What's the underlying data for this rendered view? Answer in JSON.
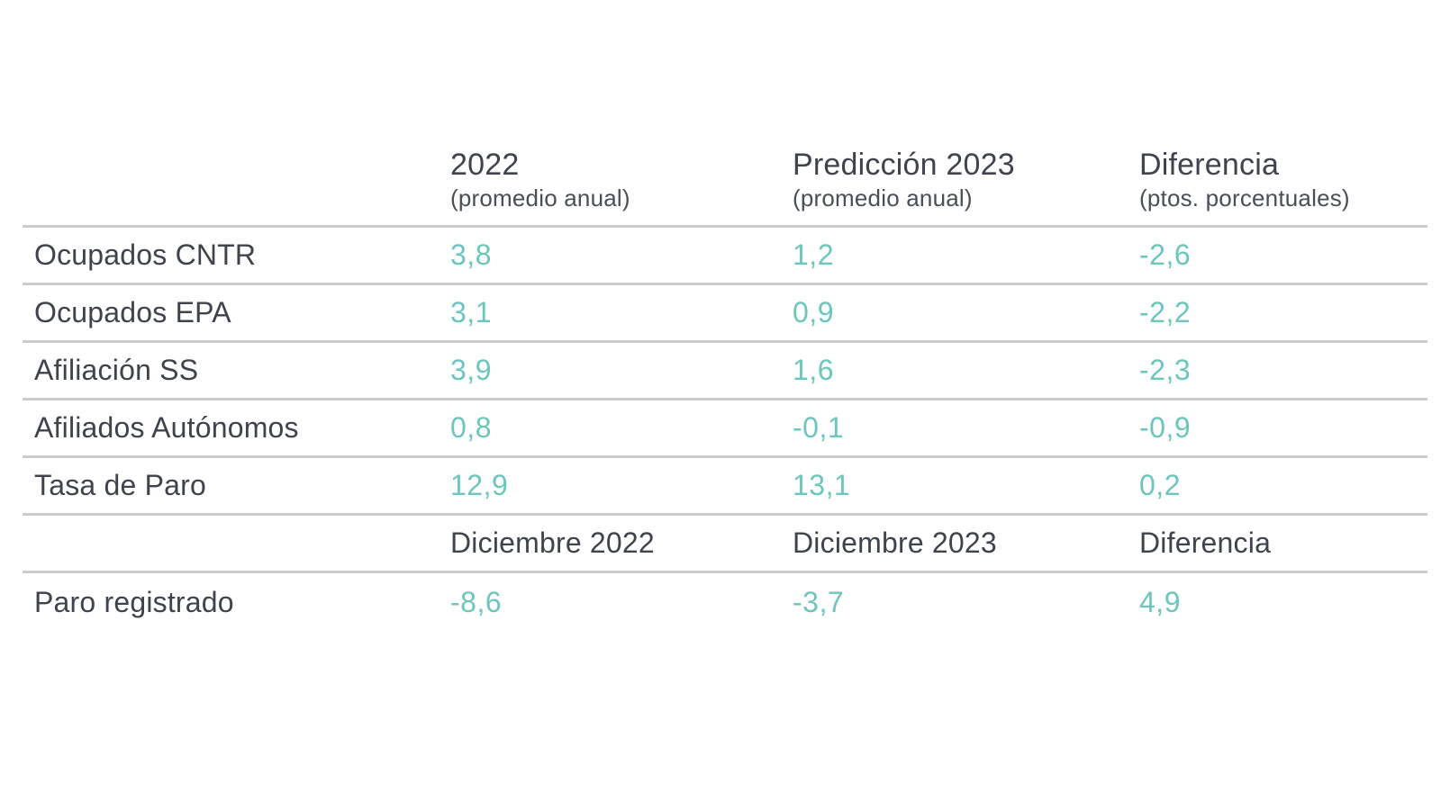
{
  "colors": {
    "value_teal": "#6cc6be",
    "text_dark": "#3e434d",
    "separator_gray": "#c9cbcd",
    "background": "#ffffff"
  },
  "chart_data": {
    "type": "table",
    "title": "",
    "sections": [
      {
        "column_headers": [
          {
            "title": "2022",
            "subtitle": "(promedio anual)"
          },
          {
            "title": "Predicción 2023",
            "subtitle": "(promedio anual)"
          },
          {
            "title": "Diferencia",
            "subtitle": "(ptos. porcentuales)"
          }
        ],
        "rows": [
          {
            "label": "Ocupados CNTR",
            "values": [
              "3,8",
              "1,2",
              "-2,6"
            ]
          },
          {
            "label": "Ocupados EPA",
            "values": [
              "3,1",
              "0,9",
              "-2,2"
            ]
          },
          {
            "label": "Afiliación SS",
            "values": [
              "3,9",
              "1,6",
              "-2,3"
            ]
          },
          {
            "label": "Afiliados Autónomos",
            "values": [
              "0,8",
              "-0,1",
              "-0,9"
            ]
          },
          {
            "label": "Tasa de Paro",
            "values": [
              "12,9",
              "13,1",
              "0,2"
            ]
          }
        ]
      },
      {
        "column_headers": [
          {
            "title": "Diciembre 2022"
          },
          {
            "title": "Diciembre 2023"
          },
          {
            "title": "Diferencia"
          }
        ],
        "rows": [
          {
            "label": "Paro registrado",
            "values": [
              "-8,6",
              "-3,7",
              "4,9"
            ]
          }
        ]
      }
    ]
  }
}
